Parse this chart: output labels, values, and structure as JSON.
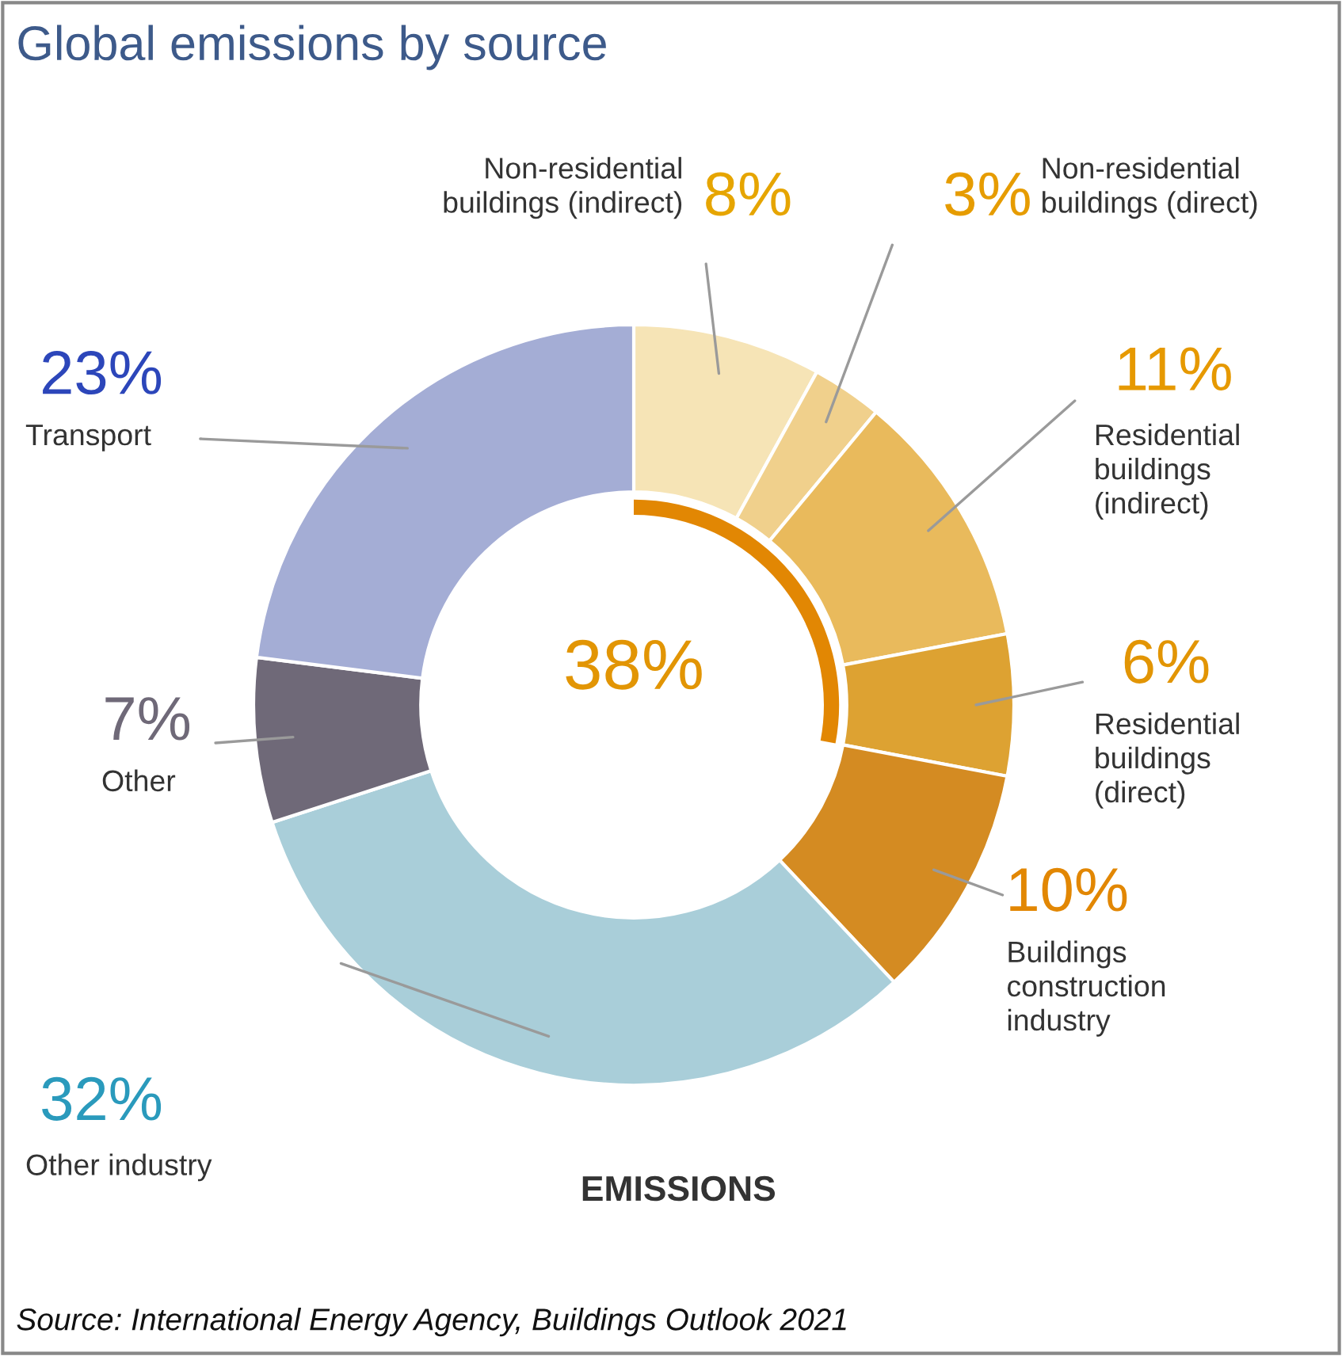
{
  "chart_data": {
    "type": "donut",
    "title": "Global emissions by source",
    "categories": [
      "Non-residential\nbuildings (indirect)",
      "Non-residential\nbuildings (direct)",
      "Residential\nbuildings\n(indirect)",
      "Residential\nbuildings\n(direct)",
      "Buildings\nconstruction\nindustry",
      "Other industry",
      "Other",
      "Transport"
    ],
    "values": [
      8,
      3,
      11,
      6,
      10,
      32,
      7,
      23
    ],
    "value_labels": [
      "8%",
      "3%",
      "11%",
      "6%",
      "10%",
      "32%",
      "7%",
      "23%"
    ],
    "colors": [
      "#f6e4b6",
      "#f0d08c",
      "#e9ba5c",
      "#dda232",
      "#d48b22",
      "#a9ced9",
      "#6f6978",
      "#a4add5"
    ],
    "annotations": [
      "38%",
      "EMISSIONS",
      "Source: International Energy Agency, Buildings Outlook 2021"
    ]
  }
}
